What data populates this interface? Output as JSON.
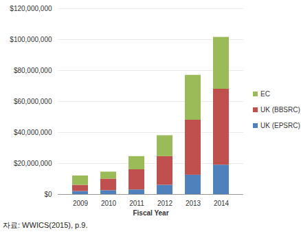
{
  "chart_data": {
    "type": "bar",
    "stacked": true,
    "x_label": "Fiscal Year",
    "caption": "자료: WWICS(2015), p.9.",
    "categories": [
      "2009",
      "2010",
      "2011",
      "2012",
      "2013",
      "2014"
    ],
    "series": [
      {
        "name": "UK (EPSRC)",
        "color": "#4F81BD",
        "values": [
          2000000,
          2500000,
          3000000,
          6000000,
          12500000,
          19000000
        ]
      },
      {
        "name": "UK (BBSRC)",
        "color": "#C0504D",
        "values": [
          4000000,
          7500000,
          13000000,
          18500000,
          35500000,
          49000000
        ]
      },
      {
        "name": "EC",
        "color": "#9BBB59",
        "values": [
          6000000,
          4500000,
          8500000,
          13500000,
          29000000,
          33500000
        ]
      }
    ],
    "ylim": [
      0,
      120000000
    ],
    "yticks": [
      {
        "value": 0,
        "label": "$0"
      },
      {
        "value": 20000000,
        "label": "$20,000,000"
      },
      {
        "value": 40000000,
        "label": "$40,000,000"
      },
      {
        "value": 60000000,
        "label": "$60,000,000"
      },
      {
        "value": 80000000,
        "label": "$80,000,000"
      },
      {
        "value": 100000000,
        "label": "$100,000,000"
      },
      {
        "value": 120000000,
        "label": "$120,000,000"
      }
    ],
    "grid": true,
    "legend": "right"
  }
}
